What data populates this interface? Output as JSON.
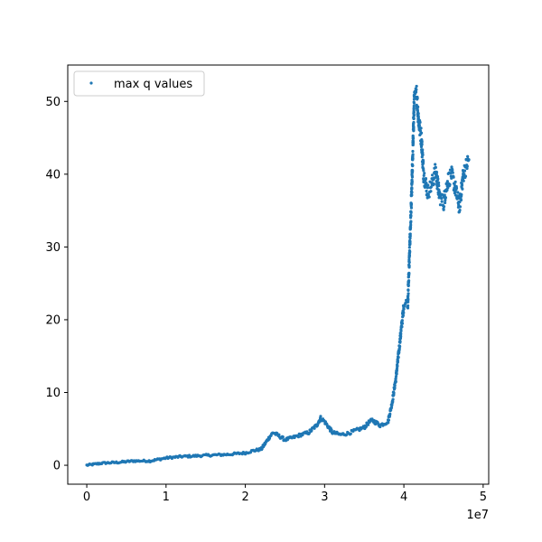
{
  "chart_data": {
    "type": "scatter",
    "title": "",
    "xlabel": "",
    "ylabel": "",
    "x_offset_label": "1e7",
    "xlim": [
      -2400000,
      50700000
    ],
    "ylim": [
      -2.6,
      55.0
    ],
    "x_ticks": [
      0,
      10000000,
      20000000,
      30000000,
      40000000,
      50000000
    ],
    "x_tick_labels": [
      "0",
      "1",
      "2",
      "3",
      "4",
      "5"
    ],
    "y_ticks": [
      0,
      10,
      20,
      30,
      40,
      50
    ],
    "y_tick_labels": [
      "0",
      "10",
      "20",
      "30",
      "40",
      "50"
    ],
    "grid": false,
    "legend": {
      "placement": "top-left",
      "entries": [
        "max q values"
      ]
    },
    "series": [
      {
        "name": "max q values",
        "color": "#1f77b4",
        "x": [
          0,
          2000000,
          4000000,
          6000000,
          8000000,
          10000000,
          12000000,
          14000000,
          16000000,
          18000000,
          20000000,
          21000000,
          22000000,
          23000000,
          23500000,
          24000000,
          25000000,
          26000000,
          27000000,
          28000000,
          29000000,
          29500000,
          30000000,
          31000000,
          32000000,
          33000000,
          34000000,
          35000000,
          35500000,
          36000000,
          37000000,
          38000000,
          38500000,
          39000000,
          39500000,
          40000000,
          40500000,
          41000000,
          41300000,
          41600000,
          41900000,
          42200000,
          42500000,
          43000000,
          43500000,
          44000000,
          44500000,
          45000000,
          45500000,
          46000000,
          46500000,
          47000000,
          47500000,
          48000000,
          48200000
        ],
        "y": [
          0.0,
          0.3,
          0.4,
          0.6,
          0.6,
          1.0,
          1.2,
          1.3,
          1.4,
          1.5,
          1.7,
          2.0,
          2.2,
          3.8,
          4.5,
          4.2,
          3.5,
          3.8,
          4.2,
          4.5,
          5.5,
          6.5,
          6.0,
          4.5,
          4.2,
          4.4,
          4.8,
          5.2,
          5.8,
          6.2,
          5.5,
          6.0,
          8.5,
          12.0,
          17.0,
          22.0,
          22.5,
          38.0,
          50.0,
          51.0,
          47.0,
          45.0,
          40.0,
          37.5,
          38.5,
          40.5,
          37.0,
          36.0,
          39.0,
          40.0,
          38.0,
          35.5,
          40.0,
          41.5,
          42.0
        ]
      }
    ]
  }
}
